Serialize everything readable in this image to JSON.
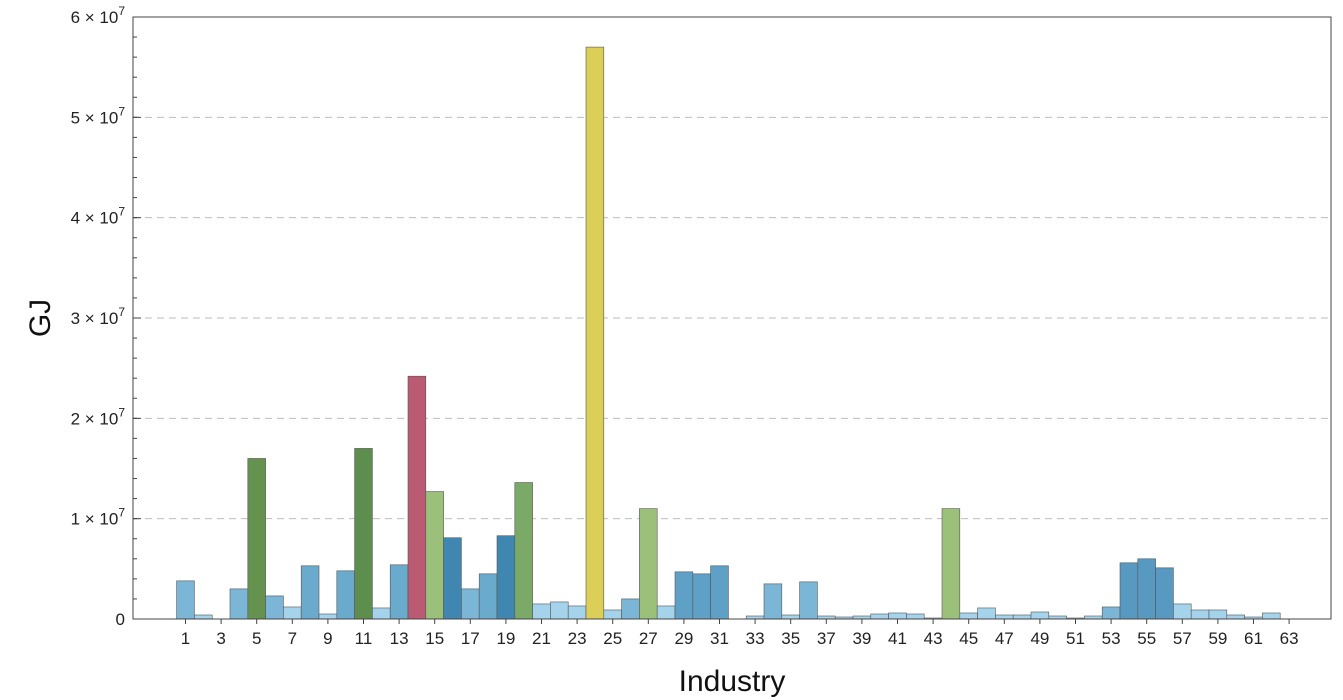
{
  "chart_data": {
    "type": "bar",
    "title": "",
    "xlabel": "Industry",
    "ylabel": "GJ",
    "ylim": [
      0,
      60000000
    ],
    "grid": "horizontal dashed",
    "y_ticks": [
      {
        "value": 0,
        "mantissa": "0",
        "exponent": ""
      },
      {
        "value": 10000000,
        "mantissa": "1 × 10",
        "exponent": "7"
      },
      {
        "value": 20000000,
        "mantissa": "2 × 10",
        "exponent": "7"
      },
      {
        "value": 30000000,
        "mantissa": "3 × 10",
        "exponent": "7"
      },
      {
        "value": 40000000,
        "mantissa": "4 × 10",
        "exponent": "7"
      },
      {
        "value": 50000000,
        "mantissa": "5 × 10",
        "exponent": "7"
      },
      {
        "value": 60000000,
        "mantissa": "6 × 10",
        "exponent": "7"
      }
    ],
    "x_tick_labels": [
      "1",
      "3",
      "5",
      "7",
      "9",
      "11",
      "13",
      "15",
      "17",
      "19",
      "21",
      "23",
      "25",
      "27",
      "29",
      "31",
      "33",
      "35",
      "37",
      "39",
      "41",
      "43",
      "45",
      "47",
      "49",
      "51",
      "53",
      "55",
      "57",
      "59",
      "61",
      "63"
    ],
    "categories": [
      1,
      2,
      3,
      4,
      5,
      6,
      7,
      8,
      9,
      10,
      11,
      12,
      13,
      14,
      15,
      16,
      17,
      18,
      19,
      20,
      21,
      22,
      23,
      24,
      25,
      26,
      27,
      28,
      29,
      30,
      31,
      32,
      33,
      34,
      35,
      36,
      37,
      38,
      39,
      40,
      41,
      42,
      43,
      44,
      45,
      46,
      47,
      48,
      49,
      50,
      51,
      52,
      53,
      54,
      55,
      56,
      57,
      58,
      59,
      60,
      61,
      62,
      63
    ],
    "values": [
      3800000,
      400000,
      0,
      3000000,
      16000000,
      2300000,
      1200000,
      5300000,
      500000,
      4800000,
      17000000,
      1100000,
      5400000,
      24200000,
      12700000,
      8100000,
      3000000,
      4500000,
      8300000,
      13600000,
      1500000,
      1700000,
      1300000,
      57000000,
      900000,
      2000000,
      11000000,
      1300000,
      4700000,
      4500000,
      5300000,
      0,
      300000,
      3500000,
      400000,
      3700000,
      300000,
      200000,
      300000,
      500000,
      600000,
      500000,
      100000,
      11000000,
      600000,
      1100000,
      400000,
      400000,
      700000,
      300000,
      100000,
      300000,
      1200000,
      5600000,
      6000000,
      5100000,
      1500000,
      900000,
      900000,
      400000,
      200000,
      600000,
      0
    ],
    "bar_colors": [
      "#7bb6d6",
      "#a6d3ec",
      "#a6d3ec",
      "#7bb6d6",
      "#65934f",
      "#7bb6d6",
      "#a6d3ec",
      "#6aaacd",
      "#a6d3ec",
      "#6aaacd",
      "#5e8e4d",
      "#a6d3ec",
      "#6aaacd",
      "#bb5a73",
      "#9bc07a",
      "#3f87b0",
      "#7bb6d6",
      "#6aaacd",
      "#3f87b0",
      "#7aa968",
      "#a6d3ec",
      "#a6d3ec",
      "#a6d3ec",
      "#dccf58",
      "#a6d3ec",
      "#7bb6d6",
      "#9bc07a",
      "#a6d3ec",
      "#5ea0c6",
      "#5ea0c6",
      "#5ea0c6",
      "#a6d3ec",
      "#a6d3ec",
      "#7bb6d6",
      "#a6d3ec",
      "#7bb6d6",
      "#a6d3ec",
      "#a6d3ec",
      "#a6d3ec",
      "#a6d3ec",
      "#a6d3ec",
      "#a6d3ec",
      "#a6d3ec",
      "#9bc07a",
      "#a6d3ec",
      "#a6d3ec",
      "#a6d3ec",
      "#a6d3ec",
      "#a6d3ec",
      "#a6d3ec",
      "#a6d3ec",
      "#a6d3ec",
      "#7bb6d6",
      "#5799c0",
      "#5799c0",
      "#5799c0",
      "#a6d3ec",
      "#a6d3ec",
      "#a6d3ec",
      "#a6d3ec",
      "#a6d3ec",
      "#a6d3ec",
      "#a6d3ec"
    ]
  }
}
